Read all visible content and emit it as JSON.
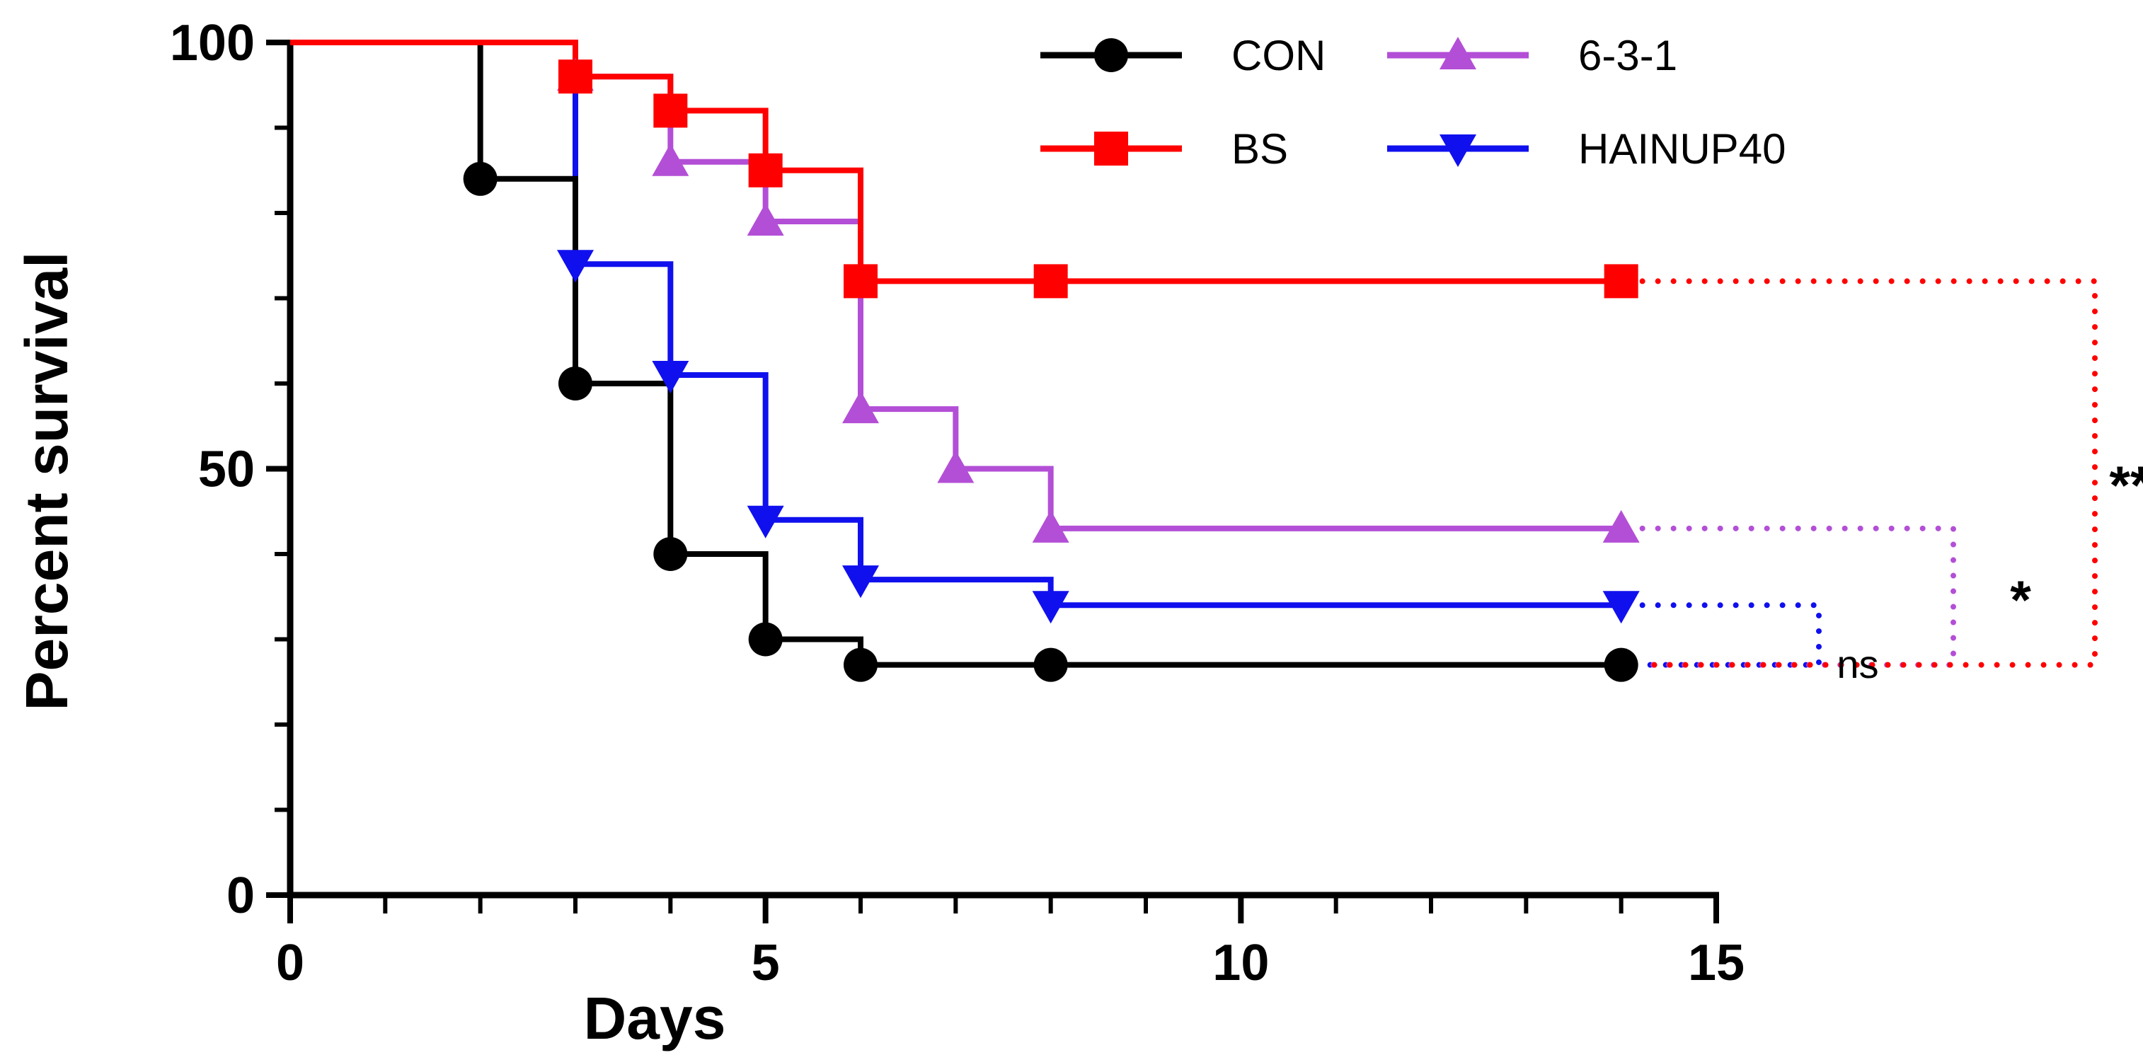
{
  "chart_data": {
    "type": "line",
    "subtype": "kaplan-meier-step",
    "title": "",
    "xlabel": "Days",
    "ylabel": "Percent survival",
    "xlim": [
      0,
      15
    ],
    "ylim": [
      0,
      100
    ],
    "x_ticks": [
      0,
      5,
      10,
      15
    ],
    "y_ticks": [
      0,
      50,
      100
    ],
    "x_minor_step": 1,
    "y_minor_step": 10,
    "grid": false,
    "legend_position": "top-center",
    "series": [
      {
        "name": "CON",
        "color": "#000000",
        "marker": "circle",
        "x": [
          0,
          2,
          3,
          4,
          5,
          6,
          8,
          14
        ],
        "y": [
          100,
          84,
          60,
          40,
          30,
          27,
          27,
          27
        ]
      },
      {
        "name": "BS",
        "color": "#ff0000",
        "marker": "square",
        "x": [
          0,
          3,
          4,
          5,
          6,
          8,
          14
        ],
        "y": [
          100,
          96,
          92,
          85,
          72,
          72,
          72
        ]
      },
      {
        "name": "6-3-1",
        "color": "#b34fd6",
        "marker": "triangle-up",
        "x": [
          0,
          3,
          4,
          5,
          6,
          7,
          8,
          14
        ],
        "y": [
          100,
          96,
          86,
          79,
          57,
          50,
          43,
          43
        ]
      },
      {
        "name": "HAINUP40",
        "color": "#1010ee",
        "marker": "triangle-down",
        "x": [
          0,
          3,
          4,
          5,
          6,
          8,
          14
        ],
        "y": [
          100,
          74,
          61,
          44,
          37,
          34,
          34
        ]
      }
    ],
    "annotations": [
      {
        "label": "ns",
        "compare": [
          "HAINUP40",
          "CON"
        ],
        "color": "#1010ee"
      },
      {
        "label": "*",
        "compare": [
          "6-3-1",
          "CON"
        ],
        "color": "#b34fd6"
      },
      {
        "label": "**",
        "compare": [
          "BS",
          "CON"
        ],
        "color": "#ff0000"
      }
    ]
  }
}
